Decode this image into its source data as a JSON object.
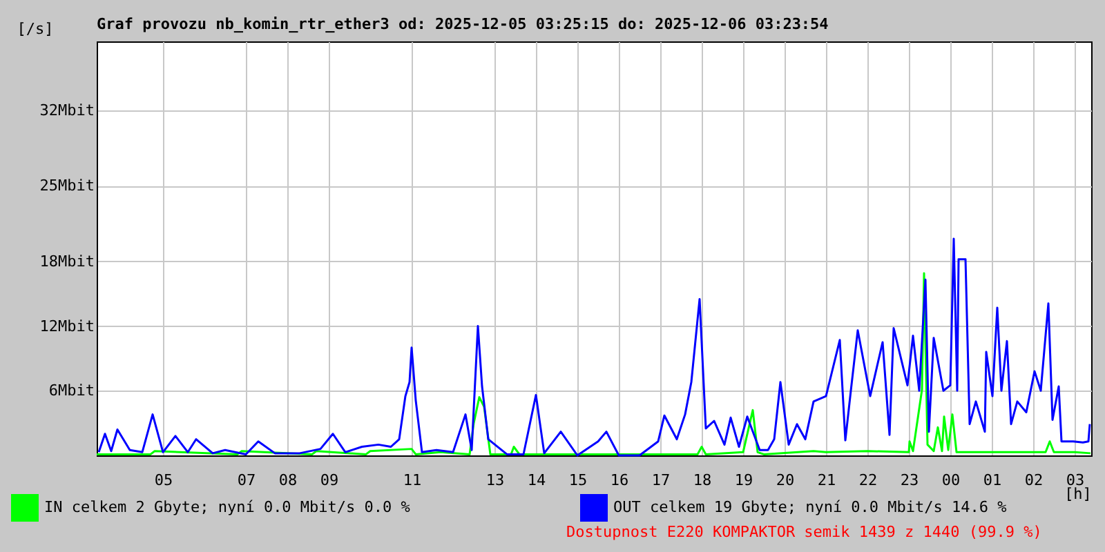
{
  "chart_data": {
    "type": "line",
    "title": "Graf provozu nb_komin_rtr_ether3 od: 2025-12-05 03:25:15 do: 2025-12-06 03:23:54",
    "xlabel": "[h]",
    "ylabel": "[/s]",
    "xlim": [
      "2025-12-05T03:24",
      "2025-12-06T03:24"
    ],
    "xticks": [
      {
        "value": "2025-12-05T05:00",
        "label": "05"
      },
      {
        "value": "2025-12-05T07:00",
        "label": "07"
      },
      {
        "value": "2025-12-05T08:00",
        "label": "08"
      },
      {
        "value": "2025-12-05T09:00",
        "label": "09"
      },
      {
        "value": "2025-12-05T11:00",
        "label": "11"
      },
      {
        "value": "2025-12-05T13:00",
        "label": "13"
      },
      {
        "value": "2025-12-05T14:00",
        "label": "14"
      },
      {
        "value": "2025-12-05T15:00",
        "label": "15"
      },
      {
        "value": "2025-12-05T16:00",
        "label": "16"
      },
      {
        "value": "2025-12-05T17:00",
        "label": "17"
      },
      {
        "value": "2025-12-05T18:00",
        "label": "18"
      },
      {
        "value": "2025-12-05T19:00",
        "label": "19"
      },
      {
        "value": "2025-12-05T20:00",
        "label": "20"
      },
      {
        "value": "2025-12-05T21:00",
        "label": "21"
      },
      {
        "value": "2025-12-05T22:00",
        "label": "22"
      },
      {
        "value": "2025-12-05T23:00",
        "label": "23"
      },
      {
        "value": "2025-12-06T00:00",
        "label": "00"
      },
      {
        "value": "2025-12-06T01:00",
        "label": "01"
      },
      {
        "value": "2025-12-06T02:00",
        "label": "02"
      },
      {
        "value": "2025-12-06T03:00",
        "label": "03"
      }
    ],
    "ylim": [
      0,
      38.4
    ],
    "yticks": [
      {
        "value": 6,
        "label": "6Mbit"
      },
      {
        "value": 12,
        "label": "12Mbit"
      },
      {
        "value": 18,
        "label": "18Mbit"
      },
      {
        "value": 25,
        "label": "25Mbit"
      },
      {
        "value": 32,
        "label": "32Mbit"
      }
    ],
    "grid": true,
    "legend": "bottom",
    "marker": "none",
    "line_style": "solid",
    "annotations": [
      "Dostupnost E220 KOMPAKTOR semik 1439 z 1440 (99.9 %)"
    ],
    "series": [
      {
        "name": "IN celkem 2 Gbyte; nyní   0.0 Mbit/s 0.0 %",
        "color": "#00ff00",
        "x": [
          "2025-12-05T03:24",
          "2025-12-05T04:42",
          "2025-12-05T04:48",
          "2025-12-05T06:48",
          "2025-12-05T06:54",
          "2025-12-05T08:36",
          "2025-12-05T08:42",
          "2025-12-05T09:54",
          "2025-12-05T10:00",
          "2025-12-05T11:00",
          "2025-12-05T11:06",
          "2025-12-05T11:42",
          "2025-12-05T12:24",
          "2025-12-05T12:30",
          "2025-12-05T12:38",
          "2025-12-05T12:45",
          "2025-12-05T12:54",
          "2025-12-05T13:24",
          "2025-12-05T13:28",
          "2025-12-05T13:36",
          "2025-12-05T17:54",
          "2025-12-05T18:00",
          "2025-12-05T18:06",
          "2025-12-05T19:00",
          "2025-12-05T19:14",
          "2025-12-05T19:21",
          "2025-12-05T19:30",
          "2025-12-05T20:42",
          "2025-12-05T21:00",
          "2025-12-05T22:00",
          "2025-12-05T23:00",
          "2025-12-05T23:01",
          "2025-12-05T23:06",
          "2025-12-05T23:19",
          "2025-12-05T23:22",
          "2025-12-05T23:27",
          "2025-12-05T23:36",
          "2025-12-05T23:42",
          "2025-12-05T23:48",
          "2025-12-05T23:51",
          "2025-12-05T23:57",
          "2025-12-06T00:03",
          "2025-12-06T00:09",
          "2025-12-06T00:30",
          "2025-12-06T01:00",
          "2025-12-06T02:00",
          "2025-12-06T02:18",
          "2025-12-06T02:24",
          "2025-12-06T02:30",
          "2025-12-06T03:00",
          "2025-12-06T03:23"
        ],
        "values": [
          0.1,
          0.1,
          0.4,
          0.1,
          0.4,
          0.1,
          0.4,
          0.1,
          0.4,
          0.6,
          0.1,
          0.3,
          0.1,
          3.0,
          5.4,
          4.5,
          0.1,
          0.1,
          0.8,
          0.1,
          0.1,
          0.8,
          0.1,
          0.3,
          4.2,
          0.3,
          0.1,
          0.4,
          0.3,
          0.4,
          0.3,
          1.3,
          0.4,
          6.1,
          16.9,
          1.0,
          0.4,
          2.6,
          0.4,
          3.6,
          0.5,
          3.8,
          0.3,
          0.3,
          0.3,
          0.3,
          0.3,
          1.3,
          0.3,
          0.3,
          0.2
        ]
      },
      {
        "name": "OUT celkem 19 Gbyte; nyní   0.0 Mbit/s 14.6 %",
        "color": "#0000ff",
        "x": [
          "2025-12-05T03:27",
          "2025-12-05T03:36",
          "2025-12-05T03:45",
          "2025-12-05T03:54",
          "2025-12-05T04:12",
          "2025-12-05T04:30",
          "2025-12-05T04:45",
          "2025-12-05T05:00",
          "2025-12-05T05:18",
          "2025-12-05T05:36",
          "2025-12-05T05:48",
          "2025-12-05T06:12",
          "2025-12-05T06:30",
          "2025-12-05T07:00",
          "2025-12-05T07:18",
          "2025-12-05T07:42",
          "2025-12-05T08:18",
          "2025-12-05T08:48",
          "2025-12-05T09:06",
          "2025-12-05T09:24",
          "2025-12-05T09:48",
          "2025-12-05T10:12",
          "2025-12-05T10:30",
          "2025-12-05T10:42",
          "2025-12-05T10:51",
          "2025-12-05T10:57",
          "2025-12-05T11:00",
          "2025-12-05T11:06",
          "2025-12-05T11:15",
          "2025-12-05T11:36",
          "2025-12-05T12:00",
          "2025-12-05T12:18",
          "2025-12-05T12:27",
          "2025-12-05T12:36",
          "2025-12-05T12:42",
          "2025-12-05T12:51",
          "2025-12-05T13:18",
          "2025-12-05T13:42",
          "2025-12-05T14:00",
          "2025-12-05T14:12",
          "2025-12-05T14:36",
          "2025-12-05T15:00",
          "2025-12-05T15:30",
          "2025-12-05T15:42",
          "2025-12-05T16:00",
          "2025-12-05T16:30",
          "2025-12-05T16:57",
          "2025-12-05T17:06",
          "2025-12-05T17:24",
          "2025-12-05T17:36",
          "2025-12-05T17:45",
          "2025-12-05T17:57",
          "2025-12-05T18:06",
          "2025-12-05T18:18",
          "2025-12-05T18:33",
          "2025-12-05T18:42",
          "2025-12-05T18:54",
          "2025-12-05T19:06",
          "2025-12-05T19:24",
          "2025-12-05T19:36",
          "2025-12-05T19:45",
          "2025-12-05T19:54",
          "2025-12-05T20:06",
          "2025-12-05T20:18",
          "2025-12-05T20:30",
          "2025-12-05T20:42",
          "2025-12-05T21:00",
          "2025-12-05T21:20",
          "2025-12-05T21:28",
          "2025-12-05T21:36",
          "2025-12-05T21:46",
          "2025-12-05T22:04",
          "2025-12-05T22:22",
          "2025-12-05T22:32",
          "2025-12-05T22:38",
          "2025-12-05T22:58",
          "2025-12-05T23:06",
          "2025-12-05T23:15",
          "2025-12-05T23:24",
          "2025-12-05T23:29",
          "2025-12-05T23:36",
          "2025-12-05T23:50",
          "2025-12-06T00:00",
          "2025-12-06T00:05",
          "2025-12-06T00:10",
          "2025-12-06T00:12",
          "2025-12-06T00:22",
          "2025-12-06T00:28",
          "2025-12-06T00:37",
          "2025-12-06T00:50",
          "2025-12-06T00:52",
          "2025-12-06T01:01",
          "2025-12-06T01:08",
          "2025-12-06T01:14",
          "2025-12-06T01:22",
          "2025-12-06T01:28",
          "2025-12-06T01:37",
          "2025-12-06T01:50",
          "2025-12-06T02:02",
          "2025-12-06T02:11",
          "2025-12-06T02:22",
          "2025-12-06T02:28",
          "2025-12-06T02:37",
          "2025-12-06T02:41",
          "2025-12-06T02:58",
          "2025-12-06T03:12",
          "2025-12-06T03:20",
          "2025-12-06T03:22"
        ],
        "values": [
          0.3,
          2.0,
          0.4,
          2.4,
          0.5,
          0.3,
          3.8,
          0.3,
          1.8,
          0.3,
          1.5,
          0.2,
          0.5,
          0.1,
          1.3,
          0.2,
          0.2,
          0.6,
          2.0,
          0.3,
          0.8,
          1.0,
          0.8,
          1.5,
          5.5,
          6.8,
          10.0,
          5.1,
          0.3,
          0.5,
          0.3,
          3.8,
          0.5,
          12.0,
          6.4,
          1.5,
          0.1,
          0.1,
          5.6,
          0.2,
          2.2,
          0.0,
          1.3,
          2.2,
          0.0,
          0.0,
          1.3,
          3.7,
          1.5,
          3.8,
          6.8,
          14.5,
          2.5,
          3.2,
          1.0,
          3.5,
          0.8,
          3.6,
          0.5,
          0.5,
          1.5,
          6.8,
          1.0,
          2.9,
          1.5,
          5.0,
          5.5,
          10.7,
          1.4,
          6.0,
          11.6,
          5.5,
          10.5,
          1.9,
          11.8,
          6.5,
          11.1,
          6.0,
          16.3,
          2.2,
          10.9,
          6.0,
          6.5,
          20.1,
          6.0,
          18.2,
          18.2,
          2.9,
          5.0,
          2.2,
          9.6,
          5.5,
          13.7,
          6.0,
          10.6,
          2.9,
          5.0,
          4.0,
          7.8,
          6.0,
          14.1,
          3.3,
          6.4,
          1.3,
          1.3,
          1.2,
          1.3,
          2.9
        ]
      }
    ]
  }
}
